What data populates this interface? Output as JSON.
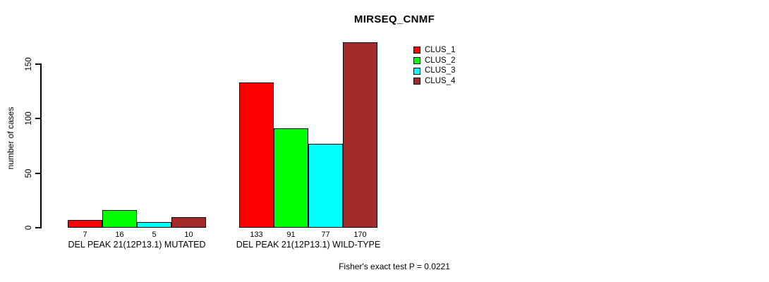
{
  "title": "MIRSEQ_CNMF",
  "ylabel": "number of cases",
  "footer": "Fisher's exact test P = 0.0221",
  "colors": {
    "background": "#ffffff",
    "axis": "#000000",
    "text": "#000000"
  },
  "chart_data": {
    "type": "bar",
    "title": "MIRSEQ_CNMF",
    "xlabel": "",
    "ylabel": "number of cases",
    "categories": [
      "DEL PEAK 21(12P13.1) MUTATED",
      "DEL PEAK 21(12P13.1) WILD-TYPE"
    ],
    "groups": [
      {
        "label": "DEL PEAK 21(12P13.1) MUTATED",
        "values": [
          7,
          16,
          5,
          10
        ]
      },
      {
        "label": "DEL PEAK 21(12P13.1) WILD-TYPE",
        "values": [
          133,
          91,
          77,
          170
        ]
      }
    ],
    "series": [
      {
        "name": "CLUS_1",
        "color": "#ff0000"
      },
      {
        "name": "CLUS_2",
        "color": "#00ff00"
      },
      {
        "name": "CLUS_3",
        "color": "#00ffff"
      },
      {
        "name": "CLUS_4",
        "color": "#a52a2a"
      }
    ],
    "yticks": [
      0,
      50,
      100,
      150
    ],
    "ylim": [
      0,
      170
    ],
    "axis_max_tick": 150,
    "grid": false,
    "legend_position": "top-right",
    "annotation": "Fisher's exact test P = 0.0221"
  }
}
